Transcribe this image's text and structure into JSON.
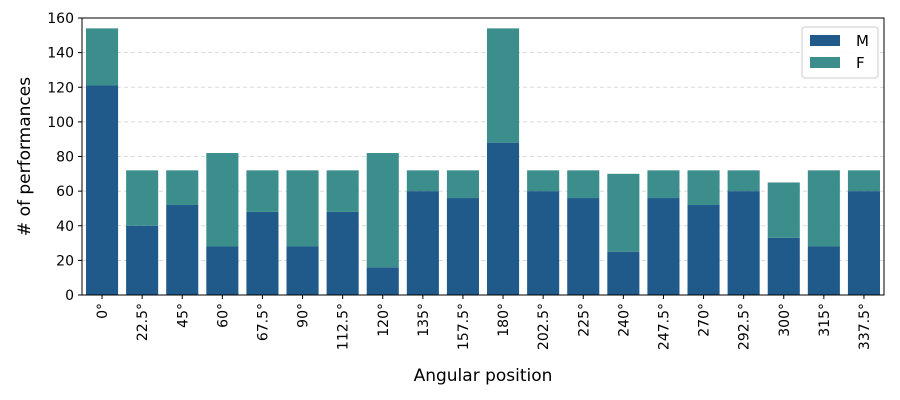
{
  "chart_data": {
    "type": "bar",
    "stacked": true,
    "categories": [
      "0°",
      "22.5°",
      "45°",
      "60°",
      "67.5°",
      "90°",
      "112.5°",
      "120°",
      "135°",
      "157.5°",
      "180°",
      "202.5°",
      "225°",
      "240°",
      "247.5°",
      "270°",
      "292.5°",
      "300°",
      "315°",
      "337.5°"
    ],
    "series": [
      {
        "name": "M",
        "color": "#1f5a8a",
        "values": [
          121,
          40,
          52,
          28,
          48,
          28,
          48,
          16,
          60,
          56,
          88,
          60,
          56,
          25,
          56,
          52,
          60,
          33,
          28,
          60
        ]
      },
      {
        "name": "F",
        "color": "#3b8e8c",
        "values": [
          33,
          32,
          20,
          54,
          24,
          44,
          24,
          66,
          12,
          16,
          66,
          12,
          16,
          45,
          16,
          20,
          12,
          32,
          44,
          12
        ]
      }
    ],
    "xlabel": "Angular position",
    "ylabel": "# of performances",
    "ylim": [
      0,
      160
    ],
    "yticks": [
      0,
      20,
      40,
      60,
      80,
      100,
      120,
      140,
      160
    ],
    "grid": "horizontal-dashed",
    "legend_position": "top-right"
  }
}
